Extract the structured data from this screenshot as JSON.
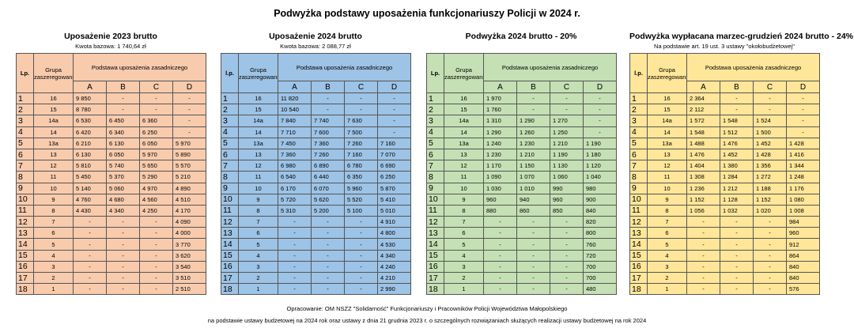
{
  "title": "Podwyżka podstawy uposażenia funkcjonariuszy Policji w 2024 r.",
  "tables": [
    {
      "title": "Uposażenie 2023 brutto",
      "subtitle": "Kwota bazowa: 1 740,64 zł",
      "color": "#f8cbad",
      "headers": {
        "lp": "Lp.",
        "group": "Grupa zaszeregowania",
        "base": "Podstawa uposażenia zasadniczego",
        "cols": [
          "A",
          "B",
          "C",
          "D"
        ]
      },
      "rows": [
        [
          1,
          "16",
          "9 850",
          "-",
          "-",
          "-"
        ],
        [
          2,
          "15",
          "8 780",
          "-",
          "-",
          "-"
        ],
        [
          3,
          "14a",
          "6 530",
          "6 450",
          "6 360",
          "-"
        ],
        [
          4,
          "14",
          "6 420",
          "6 340",
          "6 250",
          "-"
        ],
        [
          5,
          "13a",
          "6 210",
          "6 130",
          "6 050",
          "5 970"
        ],
        [
          6,
          "13",
          "6 130",
          "6 050",
          "5 970",
          "5 890"
        ],
        [
          7,
          "12",
          "5 810",
          "5 740",
          "5 650",
          "5 570"
        ],
        [
          8,
          "11",
          "5 450",
          "5 370",
          "5 290",
          "5 210"
        ],
        [
          9,
          "10",
          "5 140",
          "5 060",
          "4 970",
          "4 890"
        ],
        [
          10,
          "9",
          "4 760",
          "4 680",
          "4 560",
          "4 510"
        ],
        [
          11,
          "8",
          "4 430",
          "4 340",
          "4 250",
          "4 170"
        ],
        [
          12,
          "7",
          "-",
          "-",
          "-",
          "4 090"
        ],
        [
          13,
          "6",
          "-",
          "-",
          "-",
          "4 000"
        ],
        [
          14,
          "5",
          "-",
          "-",
          "-",
          "3 770"
        ],
        [
          15,
          "4",
          "-",
          "-",
          "-",
          "3 620"
        ],
        [
          16,
          "3",
          "-",
          "-",
          "-",
          "3 540"
        ],
        [
          17,
          "2",
          "-",
          "-",
          "-",
          "3 510"
        ],
        [
          18,
          "1",
          "-",
          "-",
          "-",
          "2 510"
        ]
      ]
    },
    {
      "title": "Uposażenie 2024 brutto",
      "subtitle": "Kwota bazowa: 2 088,77 zł",
      "color": "#9dc3e6",
      "headers": {
        "lp": "l.p.",
        "group": "Grupa zaszeregowania",
        "base": "Podstawa uposażenia zasadniczego",
        "cols": [
          "A",
          "B",
          "C",
          "D"
        ]
      },
      "rows": [
        [
          1,
          "16",
          "11 820",
          "-",
          "-",
          "-"
        ],
        [
          2,
          "15",
          "10 540",
          "-",
          "-",
          "-"
        ],
        [
          3,
          "14a",
          "7 840",
          "7 740",
          "7 630",
          "-"
        ],
        [
          4,
          "14",
          "7 710",
          "7 600",
          "7 500",
          "-"
        ],
        [
          5,
          "13a",
          "7 450",
          "7 360",
          "7 260",
          "7 160"
        ],
        [
          6,
          "13",
          "7 360",
          "7 260",
          "7 160",
          "7 070"
        ],
        [
          7,
          "12",
          "6 980",
          "6 890",
          "6 780",
          "6 690"
        ],
        [
          8,
          "11",
          "6 540",
          "6 440",
          "6 350",
          "6 250"
        ],
        [
          9,
          "10",
          "6 170",
          "6 070",
          "5 960",
          "5 870"
        ],
        [
          10,
          "9",
          "5 720",
          "5 620",
          "5 520",
          "5 410"
        ],
        [
          11,
          "8",
          "5 310",
          "5 200",
          "5 100",
          "5 010"
        ],
        [
          12,
          "7",
          "-",
          "-",
          "-",
          "4 910"
        ],
        [
          13,
          "6",
          "-",
          "-",
          "-",
          "4 800"
        ],
        [
          14,
          "5",
          "-",
          "-",
          "-",
          "4 530"
        ],
        [
          15,
          "4",
          "-",
          "-",
          "-",
          "4 340"
        ],
        [
          16,
          "3",
          "-",
          "-",
          "-",
          "4 240"
        ],
        [
          17,
          "2",
          "-",
          "-",
          "-",
          "4 210"
        ],
        [
          18,
          "1",
          "-",
          "-",
          "-",
          "2 990"
        ]
      ]
    },
    {
      "title": "Podwyżka 2024 brutto - 20%",
      "color": "#c5e0b4",
      "headers": {
        "lp": "Lp.",
        "group": "Grupa zaszeregowania",
        "base": "Podstawa uposażenia zasadniczego",
        "cols": [
          "A",
          "B",
          "C",
          "D"
        ]
      },
      "rows": [
        [
          1,
          "16",
          "1 970",
          "-",
          "-",
          "-"
        ],
        [
          2,
          "15",
          "1 760",
          "-",
          "-",
          "-"
        ],
        [
          3,
          "14a",
          "1 310",
          "1 290",
          "1 270",
          "-"
        ],
        [
          4,
          "14",
          "1 290",
          "1 260",
          "1 250",
          "-"
        ],
        [
          5,
          "13a",
          "1 240",
          "1 230",
          "1 210",
          "1 190"
        ],
        [
          6,
          "13",
          "1 230",
          "1 210",
          "1 190",
          "1 180"
        ],
        [
          7,
          "12",
          "1 170",
          "1 150",
          "1 130",
          "1 120"
        ],
        [
          8,
          "11",
          "1 090",
          "1 070",
          "1 060",
          "1 040"
        ],
        [
          9,
          "10",
          "1 030",
          "1 010",
          "990",
          "980"
        ],
        [
          10,
          "9",
          "960",
          "940",
          "960",
          "900"
        ],
        [
          11,
          "8",
          "880",
          "860",
          "850",
          "840"
        ],
        [
          12,
          "7",
          "-",
          "-",
          "-",
          "820"
        ],
        [
          13,
          "6",
          "-",
          "-",
          "-",
          "800"
        ],
        [
          14,
          "5",
          "-",
          "-",
          "-",
          "760"
        ],
        [
          15,
          "4",
          "-",
          "-",
          "-",
          "720"
        ],
        [
          16,
          "3",
          "-",
          "-",
          "-",
          "700"
        ],
        [
          17,
          "2",
          "-",
          "-",
          "-",
          "700"
        ],
        [
          18,
          "1",
          "-",
          "-",
          "-",
          "480"
        ]
      ]
    },
    {
      "title": "Podwyżka wypłacana marzec-grudzień 2024 brutto - 24%",
      "subtitle": "Na podstawie art. 19 ust. 3 ustawy \"okołobudżetowej\"",
      "color": "#ffe699",
      "headers": {
        "lp": "l.p.",
        "group": "Grupa zaszeregowania",
        "base": "Podstawa uposażenia zasadniczego",
        "cols": [
          "A",
          "B",
          "C",
          "D"
        ]
      },
      "rows": [
        [
          1,
          "16",
          "2 364",
          "-",
          "-",
          "-"
        ],
        [
          2,
          "15",
          "2 112",
          "-",
          "-",
          "-"
        ],
        [
          3,
          "14a",
          "1 572",
          "1 548",
          "1 524",
          "-"
        ],
        [
          4,
          "14",
          "1 548",
          "1 512",
          "1 500",
          "-"
        ],
        [
          5,
          "13a",
          "1 488",
          "1 476",
          "1 452",
          "1 428"
        ],
        [
          6,
          "13",
          "1 476",
          "1 452",
          "1 428",
          "1 416"
        ],
        [
          7,
          "12",
          "1 404",
          "1 380",
          "1 356",
          "1 344"
        ],
        [
          8,
          "11",
          "1 308",
          "1 284",
          "1 272",
          "1 248"
        ],
        [
          9,
          "10",
          "1 236",
          "1 212",
          "1 188",
          "1 176"
        ],
        [
          10,
          "9",
          "1 152",
          "1 128",
          "1 152",
          "1 080"
        ],
        [
          11,
          "8",
          "1 056",
          "1 032",
          "1 020",
          "1 008"
        ],
        [
          12,
          "7",
          "-",
          "-",
          "-",
          "984"
        ],
        [
          13,
          "6",
          "-",
          "-",
          "-",
          "960"
        ],
        [
          14,
          "5",
          "-",
          "-",
          "-",
          "912"
        ],
        [
          15,
          "4",
          "-",
          "-",
          "-",
          "864"
        ],
        [
          16,
          "3",
          "-",
          "-",
          "-",
          "840"
        ],
        [
          17,
          "2",
          "-",
          "-",
          "-",
          "840"
        ],
        [
          18,
          "1",
          "-",
          "-",
          "-",
          "576"
        ]
      ]
    }
  ],
  "footer": [
    "Opracowanie: OM NSZZ \"Solidarność\" Funkcjonariuszy i Pracowników Policji Województwa Małopolskiego",
    "na podstawie ustawy budżetowej na 2024 rok oraz ustawy z dnia 21 grudnia 2023 r. o szczególnych rozwiązaniach służących realizacji ustawy budżetowej na rok 2024"
  ]
}
